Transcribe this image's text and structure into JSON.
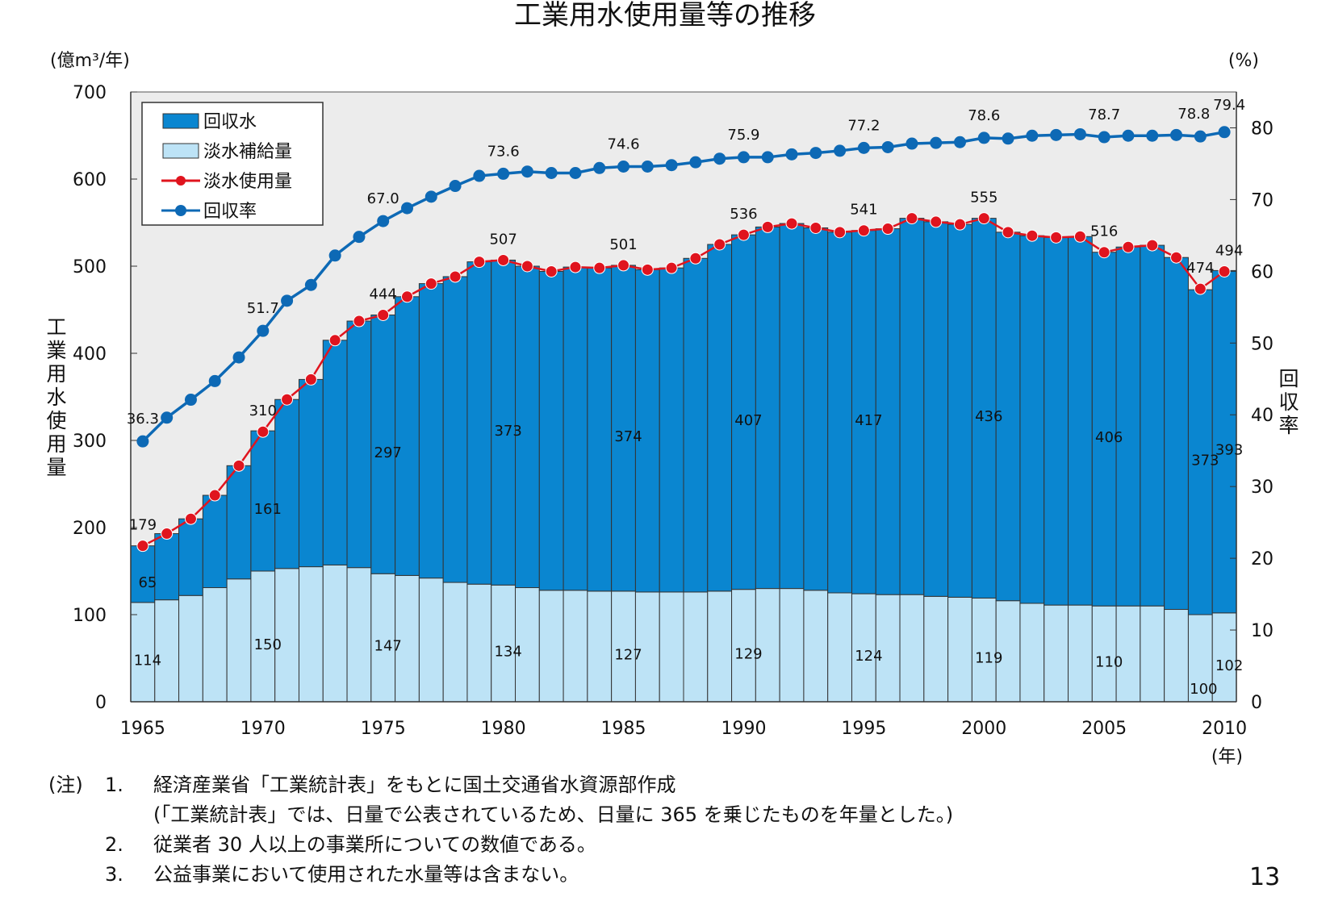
{
  "chart_data": {
    "type": "bar",
    "title": "工業用水使用量等の推移",
    "y_left_unit": "(億m³/年)",
    "y_left_label": "工業用水使用量",
    "y_right_unit": "(%)",
    "y_right_label": "回収率",
    "x_unit": "(年)",
    "ylim_left": [
      0,
      700
    ],
    "ylim_right": [
      0,
      85
    ],
    "y_left_ticks": [
      0,
      100,
      200,
      300,
      400,
      500,
      600,
      700
    ],
    "y_right_ticks": [
      0,
      10,
      20,
      30,
      40,
      50,
      60,
      70,
      80
    ],
    "x_tick_labels": [
      "1965",
      "1970",
      "1975",
      "1980",
      "1985",
      "1990",
      "1995",
      "2000",
      "2005",
      "2010"
    ],
    "legend_position": "top-left",
    "legend": [
      "回収水",
      "淡水補給量",
      "淡水使用量",
      "回収率"
    ],
    "colors": {
      "recovered": "#0a86d0",
      "supply": "#bde3f6",
      "usage_line": "#e0141e",
      "rate_line": "#0d69b5",
      "plot_bg": "#ececec"
    },
    "years": [
      1965,
      1966,
      1967,
      1968,
      1969,
      1970,
      1971,
      1972,
      1973,
      1974,
      1975,
      1976,
      1977,
      1978,
      1979,
      1980,
      1981,
      1982,
      1983,
      1984,
      1985,
      1986,
      1987,
      1988,
      1989,
      1990,
      1991,
      1992,
      1993,
      1994,
      1995,
      1996,
      1997,
      1998,
      1999,
      2000,
      2001,
      2002,
      2003,
      2004,
      2005,
      2006,
      2007,
      2008,
      2009,
      2010
    ],
    "series": [
      {
        "name": "淡水補給量",
        "kind": "bar",
        "values": [
          114,
          117,
          122,
          131,
          141,
          150,
          153,
          155,
          157,
          154,
          147,
          145,
          142,
          137,
          135,
          134,
          131,
          128,
          128,
          127,
          127,
          126,
          126,
          126,
          127,
          129,
          130,
          130,
          128,
          125,
          124,
          123,
          123,
          121,
          120,
          119,
          116,
          113,
          111,
          111,
          110,
          110,
          110,
          106,
          100,
          102
        ]
      },
      {
        "name": "回収水",
        "kind": "bar",
        "values": [
          65,
          76,
          88,
          106,
          130,
          161,
          194,
          215,
          258,
          283,
          297,
          320,
          338,
          351,
          370,
          373,
          369,
          366,
          371,
          371,
          374,
          370,
          372,
          383,
          398,
          407,
          415,
          419,
          416,
          414,
          417,
          420,
          432,
          430,
          428,
          436,
          423,
          422,
          422,
          423,
          406,
          412,
          414,
          404,
          373,
          393
        ]
      },
      {
        "name": "淡水使用量",
        "kind": "line",
        "values": [
          179,
          193,
          210,
          237,
          271,
          310,
          347,
          370,
          415,
          437,
          444,
          465,
          480,
          488,
          505,
          507,
          500,
          494,
          499,
          498,
          501,
          496,
          498,
          509,
          525,
          536,
          545,
          549,
          544,
          539,
          541,
          543,
          555,
          551,
          548,
          555,
          539,
          535,
          533,
          534,
          516,
          522,
          524,
          510,
          474,
          494
        ]
      },
      {
        "name": "回収率",
        "kind": "line",
        "axis": "right",
        "values": [
          36.3,
          39.6,
          42.1,
          44.7,
          48.0,
          51.7,
          55.9,
          58.1,
          62.2,
          64.8,
          67.0,
          68.8,
          70.4,
          71.9,
          73.3,
          73.6,
          73.9,
          73.7,
          73.7,
          74.4,
          74.6,
          74.6,
          74.8,
          75.2,
          75.7,
          75.9,
          75.9,
          76.3,
          76.5,
          76.8,
          77.2,
          77.3,
          77.8,
          77.9,
          78.0,
          78.6,
          78.5,
          78.9,
          79.0,
          79.1,
          78.7,
          78.9,
          78.9,
          79.0,
          78.8,
          79.4
        ]
      }
    ],
    "data_labels": {
      "supply": [
        {
          "year": 1965,
          "text": "114"
        },
        {
          "year": 1970,
          "text": "150"
        },
        {
          "year": 1975,
          "text": "147"
        },
        {
          "year": 1980,
          "text": "134"
        },
        {
          "year": 1985,
          "text": "127"
        },
        {
          "year": 1990,
          "text": "129"
        },
        {
          "year": 1995,
          "text": "124"
        },
        {
          "year": 2000,
          "text": "119"
        },
        {
          "year": 2005,
          "text": "110"
        },
        {
          "year": 2009,
          "text": "100"
        },
        {
          "year": 2010,
          "text": "102"
        }
      ],
      "recovered": [
        {
          "year": 1965,
          "text": "65"
        },
        {
          "year": 1970,
          "text": "161"
        },
        {
          "year": 1975,
          "text": "297"
        },
        {
          "year": 1980,
          "text": "373"
        },
        {
          "year": 1985,
          "text": "374"
        },
        {
          "year": 1990,
          "text": "407"
        },
        {
          "year": 1995,
          "text": "417"
        },
        {
          "year": 2000,
          "text": "436"
        },
        {
          "year": 2005,
          "text": "406"
        },
        {
          "year": 2009,
          "text": "373"
        },
        {
          "year": 2010,
          "text": "393"
        }
      ],
      "usage": [
        {
          "year": 1965,
          "text": "179"
        },
        {
          "year": 1970,
          "text": "310"
        },
        {
          "year": 1975,
          "text": "444"
        },
        {
          "year": 1980,
          "text": "507"
        },
        {
          "year": 1985,
          "text": "501"
        },
        {
          "year": 1990,
          "text": "536"
        },
        {
          "year": 1995,
          "text": "541"
        },
        {
          "year": 2000,
          "text": "555"
        },
        {
          "year": 2005,
          "text": "516"
        },
        {
          "year": 2009,
          "text": "474"
        },
        {
          "year": 2010,
          "text": "494"
        }
      ],
      "rate": [
        {
          "year": 1965,
          "text": "36.3"
        },
        {
          "year": 1970,
          "text": "51.7"
        },
        {
          "year": 1975,
          "text": "67.0"
        },
        {
          "year": 1980,
          "text": "73.6"
        },
        {
          "year": 1985,
          "text": "74.6"
        },
        {
          "year": 1990,
          "text": "75.9"
        },
        {
          "year": 1995,
          "text": "77.2"
        },
        {
          "year": 2000,
          "text": "78.6"
        },
        {
          "year": 2005,
          "text": "78.7"
        },
        {
          "year": 2009,
          "text": "78.8"
        },
        {
          "year": 2010,
          "text": "79.4"
        }
      ]
    }
  },
  "notes": {
    "prefix": "(注)",
    "items": [
      {
        "num": "1.",
        "text": "経済産業省「工業統計表」をもとに国土交通省水資源部作成"
      },
      {
        "num": "",
        "text": "(「工業統計表」では、日量で公表されているため、日量に 365 を乗じたものを年量とした。)"
      },
      {
        "num": "2.",
        "text": "従業者 30 人以上の事業所についての数値である。"
      },
      {
        "num": "3.",
        "text": "公益事業において使用された水量等は含まない。"
      }
    ]
  },
  "page_number": "13"
}
